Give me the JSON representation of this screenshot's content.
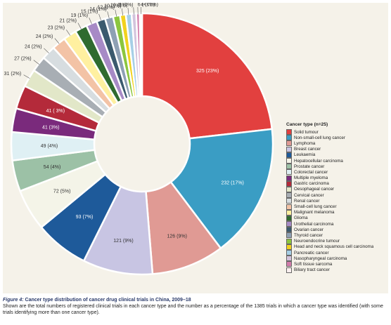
{
  "chart_data": {
    "type": "pie",
    "variant": "donut",
    "legend_title": "Cancer type (n=25)",
    "legend_position": "right",
    "slices": [
      {
        "label": "Solid tumour",
        "value": 325,
        "data_label": "325 (23%)",
        "color": "#e2403f"
      },
      {
        "label": "Non-small-cell lung cancer",
        "value": 232,
        "data_label": "232 (17%)",
        "color": "#3a9dc4"
      },
      {
        "label": "Lymphoma",
        "value": 126,
        "data_label": "126 (9%)",
        "color": "#e09a94"
      },
      {
        "label": "Breast cancer",
        "value": 121,
        "data_label": "121 (9%)",
        "color": "#c8c5e3"
      },
      {
        "label": "Leukaemia",
        "value": 93,
        "data_label": "93 (7%)",
        "color": "#1e5a9a"
      },
      {
        "label": "Hepatocellular carcinoma",
        "value": 72,
        "data_label": "72 (5%)",
        "color": "#f4f4e8"
      },
      {
        "label": "Prostate cancer",
        "value": 54,
        "data_label": "54 (4%)",
        "color": "#9cc1a6"
      },
      {
        "label": "Colorectal cancer",
        "value": 49,
        "data_label": "49 (4%)",
        "color": "#dff0f4"
      },
      {
        "label": "Multiple myeloma",
        "value": 41,
        "data_label": "41 (3%)",
        "color": "#7a2a7c"
      },
      {
        "label": "Gastric carcinoma",
        "value": 41,
        "data_label": "41 ( 3%)",
        "color": "#b42a3a"
      },
      {
        "label": "Oesophageal cancer",
        "value": 31,
        "data_label": "31 (2%)",
        "color": "#e2e7c8"
      },
      {
        "label": "Cervical cancer",
        "value": 27,
        "data_label": "27 (2%)",
        "color": "#a8aeb4"
      },
      {
        "label": "Renal cancer",
        "value": 24,
        "data_label": "24 (2%)",
        "color": "#d7dde0"
      },
      {
        "label": "Small-cell lung cancer",
        "value": 24,
        "data_label": "24 (2%)",
        "color": "#f3c3a6"
      },
      {
        "label": "Malignant melanoma",
        "value": 23,
        "data_label": "23 (2%)",
        "color": "#fff0a0"
      },
      {
        "label": "Glioma",
        "value": 21,
        "data_label": "21 (2%)",
        "color": "#2f6b2f"
      },
      {
        "label": "Urothelial carcinoma",
        "value": 19,
        "data_label": "19 (1%)",
        "color": "#a78ac6"
      },
      {
        "label": "Ovarian cancer",
        "value": 15,
        "data_label": "15 (1%)",
        "color": "#3b5a6e"
      },
      {
        "label": "Thyroid cancer",
        "value": 14,
        "data_label": "14 (1%)",
        "color": "#8ea0b4"
      },
      {
        "label": "Neuroendocrine tumour",
        "value": 12,
        "data_label": "12 (1%)",
        "color": "#8cc63e"
      },
      {
        "label": "Head and neck squamous cell carcinoma",
        "value": 10,
        "data_label": "10 (1%)",
        "color": "#f2d21e"
      },
      {
        "label": "Pancreatic cancer",
        "value": 10,
        "data_label": "10 (1%)",
        "color": "#a6cfe6"
      },
      {
        "label": "Nasopharyngeal carcinoma",
        "value": 8,
        "data_label": "8 (1%)",
        "color": "#d3c3dc"
      },
      {
        "label": "Soft tissue sarcoma",
        "value": 6,
        "data_label": "6 (<1%)",
        "color": "#d27cab"
      },
      {
        "label": "Biliary tract cancer",
        "value": 4,
        "data_label": "4 (<1%)",
        "color": "#fbf0f0"
      }
    ]
  },
  "caption": {
    "title_label": "Figure 4:",
    "title_text": " Cancer type distribution of cancer drug clinical trials in China, 2009–18",
    "body": "Shown are the total numbers of registered clinical trials in each cancer type and the number as a percentage of the 1385 trials in which a cancer type was identified (with some trials identifying more than one cancer type)."
  }
}
